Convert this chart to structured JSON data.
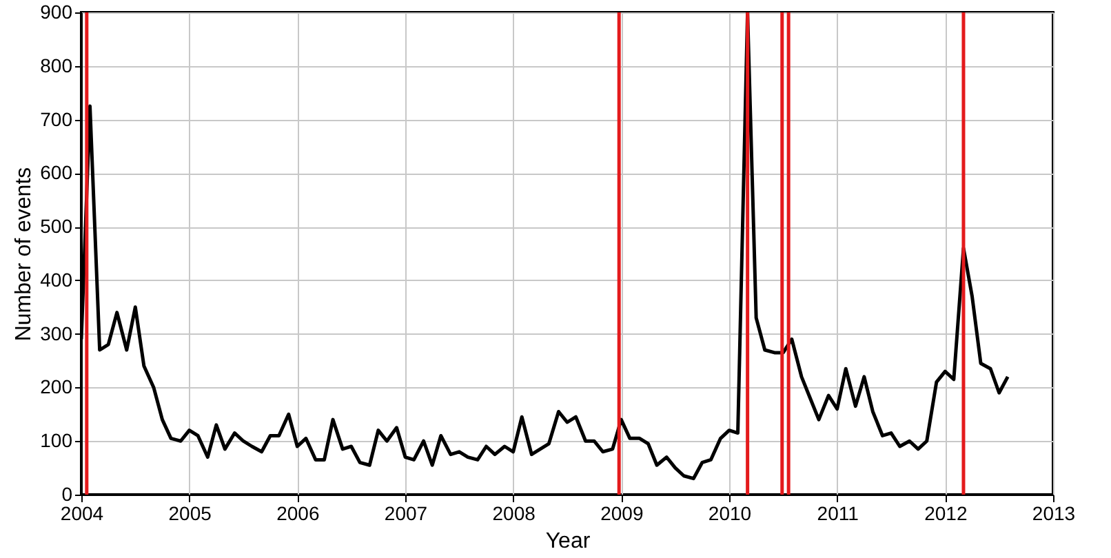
{
  "chart_data": {
    "type": "line",
    "xlabel": "Year",
    "ylabel": "Number of events",
    "x": [
      2004,
      2004.08,
      2004.17,
      2004.25,
      2004.33,
      2004.42,
      2004.5,
      2004.58,
      2004.67,
      2004.75,
      2004.83,
      2004.92,
      2005,
      2005.08,
      2005.17,
      2005.25,
      2005.33,
      2005.42,
      2005.5,
      2005.58,
      2005.67,
      2005.75,
      2005.83,
      2005.92,
      2006,
      2006.08,
      2006.17,
      2006.25,
      2006.33,
      2006.42,
      2006.5,
      2006.58,
      2006.67,
      2006.75,
      2006.83,
      2006.92,
      2007,
      2007.08,
      2007.17,
      2007.25,
      2007.33,
      2007.42,
      2007.5,
      2007.58,
      2007.67,
      2007.75,
      2007.83,
      2007.92,
      2008,
      2008.08,
      2008.17,
      2008.25,
      2008.33,
      2008.42,
      2008.5,
      2008.58,
      2008.67,
      2008.75,
      2008.83,
      2008.92,
      2009,
      2009.08,
      2009.17,
      2009.25,
      2009.33,
      2009.42,
      2009.5,
      2009.58,
      2009.67,
      2009.75,
      2009.83,
      2009.92,
      2010,
      2010.08,
      2010.17,
      2010.25,
      2010.33,
      2010.42,
      2010.5,
      2010.58,
      2010.67,
      2010.75,
      2010.83,
      2010.92,
      2011,
      2011.08,
      2011.17,
      2011.25,
      2011.33,
      2011.42,
      2011.5,
      2011.58,
      2011.67,
      2011.75,
      2011.83,
      2011.92,
      2012,
      2012.08,
      2012.17,
      2012.25,
      2012.33,
      2012.42,
      2012.5,
      2012.58
    ],
    "series": [
      {
        "color": "#000000",
        "values": [
          290,
          725,
          270,
          280,
          340,
          270,
          350,
          240,
          200,
          140,
          105,
          100,
          120,
          110,
          70,
          130,
          85,
          115,
          100,
          90,
          80,
          110,
          110,
          150,
          90,
          105,
          65,
          65,
          140,
          85,
          90,
          60,
          55,
          120,
          100,
          125,
          70,
          65,
          100,
          55,
          110,
          75,
          80,
          70,
          65,
          90,
          75,
          90,
          80,
          145,
          75,
          85,
          95,
          155,
          135,
          145,
          100,
          100,
          80,
          85,
          140,
          105,
          105,
          95,
          55,
          70,
          50,
          35,
          30,
          60,
          65,
          105,
          120,
          115,
          900,
          330,
          270,
          265,
          265,
          290,
          220,
          180,
          140,
          185,
          160,
          235,
          165,
          220,
          155,
          110,
          115,
          90,
          100,
          85,
          100,
          210,
          230,
          215,
          460,
          370,
          245,
          235,
          190,
          220
        ]
      }
    ],
    "xlim": [
      2004,
      2013
    ],
    "xticks": [
      2004,
      2005,
      2006,
      2007,
      2008,
      2009,
      2010,
      2011,
      2012,
      2013
    ],
    "ylim": [
      0,
      900
    ],
    "yticks": [
      0,
      100,
      200,
      300,
      400,
      500,
      600,
      700,
      800,
      900
    ],
    "grid": true,
    "ref_lines": [
      {
        "axis": "x",
        "value": 2004.05,
        "color": "#e41a1c"
      },
      {
        "axis": "x",
        "value": 2008.98,
        "color": "#e41a1c"
      },
      {
        "axis": "x",
        "value": 2010.17,
        "color": "#e41a1c"
      },
      {
        "axis": "x",
        "value": 2010.49,
        "color": "#e41a1c"
      },
      {
        "axis": "x",
        "value": 2010.55,
        "color": "#e41a1c"
      },
      {
        "axis": "x",
        "value": 2012.17,
        "color": "#e41a1c"
      }
    ]
  }
}
